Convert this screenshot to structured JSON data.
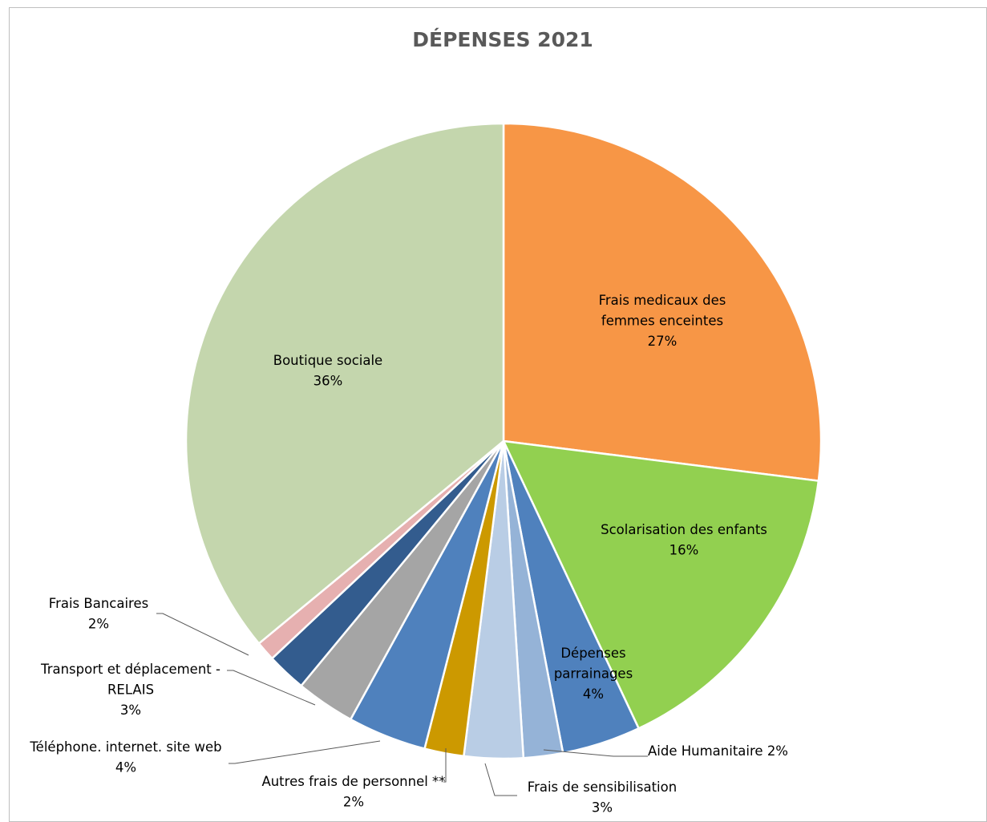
{
  "chart_data": {
    "type": "pie",
    "title": "DÉPENSES 2021",
    "slices": [
      {
        "name": "Frais medicaux des femmes enceintes",
        "value": 27,
        "label_lines": [
          "Frais medicaux des",
          "femmes enceintes",
          "27%"
        ],
        "color": "#F79646"
      },
      {
        "name": "Scolarisation des enfants",
        "value": 16,
        "label_lines": [
          "Scolarisation des enfants",
          "16%"
        ],
        "color": "#92D050"
      },
      {
        "name": "Dépenses parrainages",
        "value": 4,
        "label_lines": [
          "Dépenses",
          "parrainages",
          "4%"
        ],
        "color": "#4F81BD"
      },
      {
        "name": "Aide Humanitaire",
        "value": 2,
        "label_lines": [
          "Aide Humanitaire 2%"
        ],
        "color": "#95B3D7"
      },
      {
        "name": "Frais de sensibilisation",
        "value": 3,
        "label_lines": [
          "Frais de sensibilisation",
          "3%"
        ],
        "color": "#B9CDE5"
      },
      {
        "name": "Autres frais de personnel **",
        "value": 2,
        "label_lines": [
          "Autres frais de personnel **",
          "2%"
        ],
        "color": "#CC9900"
      },
      {
        "name": "Téléphone. internet. site web",
        "value": 4,
        "label_lines": [
          "Téléphone. internet. site web",
          "4%"
        ],
        "color": "#4F81BD"
      },
      {
        "name": "Transport et déplacement - RELAIS",
        "value": 3,
        "label_lines": [
          "Transport et déplacement -",
          "RELAIS",
          "3%"
        ],
        "color": "#A5A5A5"
      },
      {
        "name": "Frais Bancaires",
        "value": 2,
        "label_lines": [
          "Frais Bancaires",
          "2%"
        ],
        "color": "#335C8E"
      },
      {
        "name": "",
        "value": 1,
        "label_lines": [],
        "color": "#E6B0B0"
      },
      {
        "name": "Boutique sociale",
        "value": 36,
        "label_lines": [
          "Boutique sociale",
          "36%"
        ],
        "color": "#C4D6AD"
      }
    ],
    "start_angle_deg": 0,
    "direction": "clockwise",
    "legend": "none",
    "label_style": "data labels with leader lines"
  }
}
